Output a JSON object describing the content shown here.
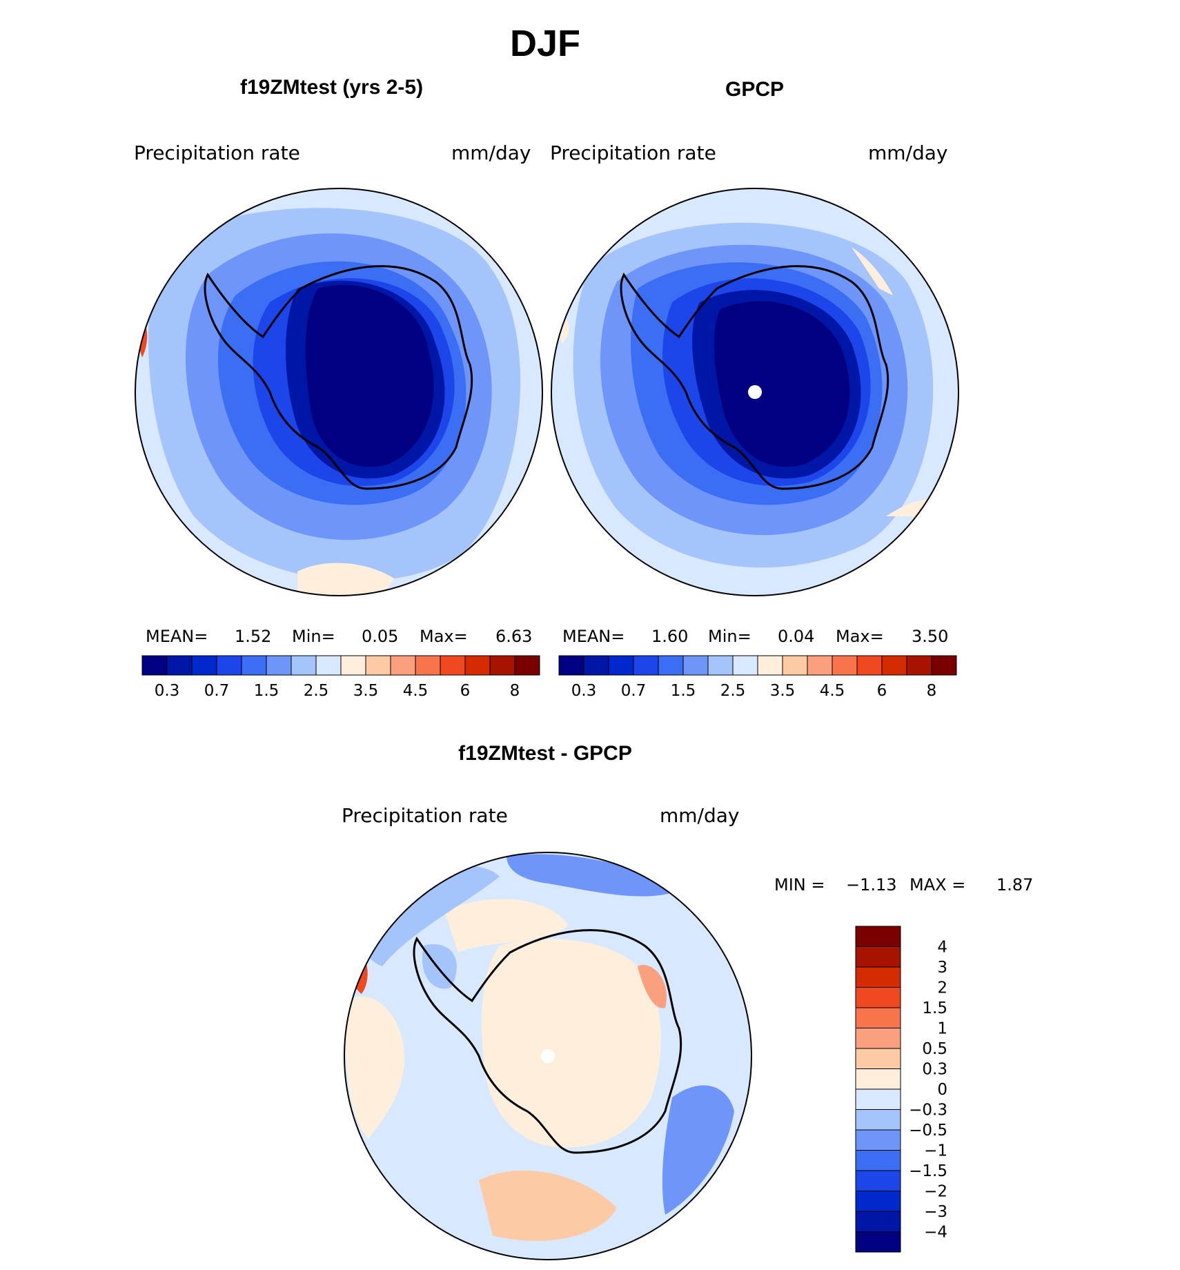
{
  "page": {
    "season_title": "DJF"
  },
  "panels": {
    "model": {
      "title": "f19ZMtest (yrs 2-5)",
      "variable": "Precipitation  rate",
      "units": "mm/day",
      "stats": {
        "mean_label": "MEAN=",
        "mean": "1.52",
        "min_label": "Min=",
        "min": "0.05",
        "max_label": "Max=",
        "max": "6.63"
      }
    },
    "obs": {
      "title": "GPCP",
      "variable": "Precipitation  rate",
      "units": "mm/day",
      "stats": {
        "mean_label": "MEAN=",
        "mean": "1.60",
        "min_label": "Min=",
        "min": "0.04",
        "max_label": "Max=",
        "max": "3.50"
      }
    },
    "diff": {
      "title": "f19ZMtest - GPCP",
      "variable": "Precipitation  rate",
      "units": "mm/day",
      "stats": {
        "min_label": "MIN =",
        "min": "−1.13",
        "max_label": "MAX =",
        "max": "1.87"
      }
    }
  },
  "precip_colorbar": {
    "colors": [
      "#000080",
      "#0016A6",
      "#0028CC",
      "#1C46EA",
      "#3C6EF4",
      "#6E96FA",
      "#A6C4FC",
      "#D8E8FE",
      "#FEEEDC",
      "#FDCAA6",
      "#FBA07E",
      "#F7744C",
      "#F04820",
      "#D42C00",
      "#A61400",
      "#7A0000"
    ],
    "tick_labels": [
      "0.3",
      "0.7",
      "1.5",
      "2.5",
      "3.5",
      "4.5",
      "6",
      "8"
    ]
  },
  "diff_colorbar": {
    "colors": [
      "#7A0000",
      "#A61400",
      "#D42C00",
      "#F04820",
      "#F7744C",
      "#FBA07E",
      "#FDCAA6",
      "#FEEEDC",
      "#D8E8FE",
      "#A6C4FC",
      "#6E96FA",
      "#3C6EF4",
      "#1C46EA",
      "#0028CC",
      "#0016A6",
      "#000080"
    ],
    "tick_labels": [
      "4",
      "3",
      "2",
      "1.5",
      "1",
      "0.5",
      "0.3",
      "0",
      "−0.3",
      "−0.5",
      "−1",
      "−1.5",
      "−2",
      "−3",
      "−4"
    ]
  }
}
